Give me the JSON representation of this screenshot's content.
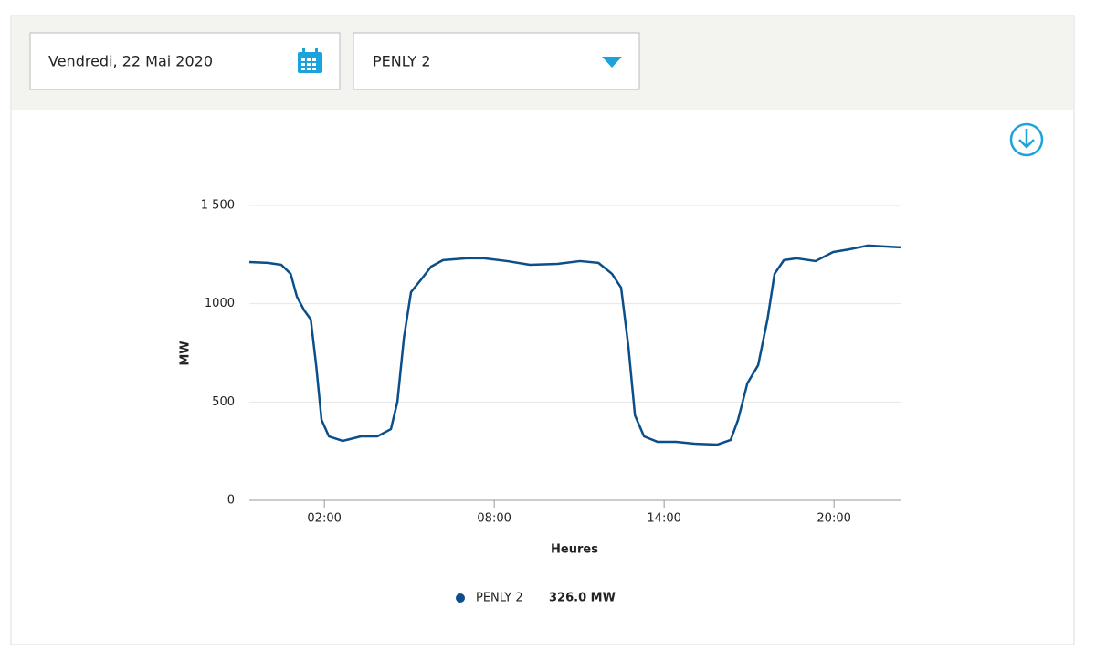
{
  "controls": {
    "date": "Vendredi, 22 Mai 2020",
    "unit": "PENLY 2"
  },
  "chart_data": {
    "type": "line",
    "x_label": "Heures",
    "y_label": "MW",
    "x": [
      -0.65,
      0,
      0.48,
      0.81,
      1.03,
      1.29,
      1.52,
      1.71,
      1.9,
      2.16,
      2.65,
      3.29,
      3.87,
      4.35,
      4.58,
      4.81,
      5.06,
      5.45,
      5.77,
      6.19,
      7.0,
      7.65,
      8.45,
      9.26,
      10.23,
      11.03,
      11.68,
      12.16,
      12.48,
      12.74,
      12.97,
      13.29,
      13.77,
      14.42,
      15.06,
      15.87,
      16.35,
      16.61,
      16.94,
      17.32,
      17.65,
      17.9,
      18.23,
      18.68,
      19.35,
      19.97,
      20.55,
      21.19,
      21.84,
      22.35
    ],
    "series": [
      {
        "name": "PENLY 2",
        "color": "#0b4f8a",
        "values": [
          1212,
          1208,
          1198,
          1152,
          1036,
          966,
          920,
          687,
          409,
          325,
          302,
          325,
          325,
          362,
          502,
          827,
          1059,
          1129,
          1189,
          1222,
          1231,
          1231,
          1217,
          1198,
          1203,
          1217,
          1208,
          1152,
          1082,
          780,
          432,
          325,
          297,
          297,
          288,
          283,
          307,
          409,
          595,
          687,
          920,
          1152,
          1222,
          1231,
          1217,
          1263,
          1277,
          1296,
          1291,
          1287
        ]
      }
    ],
    "legend_value": "326.0 MW",
    "xlim": [
      -0.65,
      22.35
    ],
    "xticks": [
      {
        "value": 2,
        "label": "02:00"
      },
      {
        "value": 8,
        "label": "08:00"
      },
      {
        "value": 14,
        "label": "14:00"
      },
      {
        "value": 20,
        "label": "20:00"
      }
    ],
    "ylim": [
      0,
      1500
    ],
    "yticks": [
      0,
      500,
      1000,
      {
        "value": 1500,
        "label": "1 500"
      }
    ],
    "grid": true
  }
}
